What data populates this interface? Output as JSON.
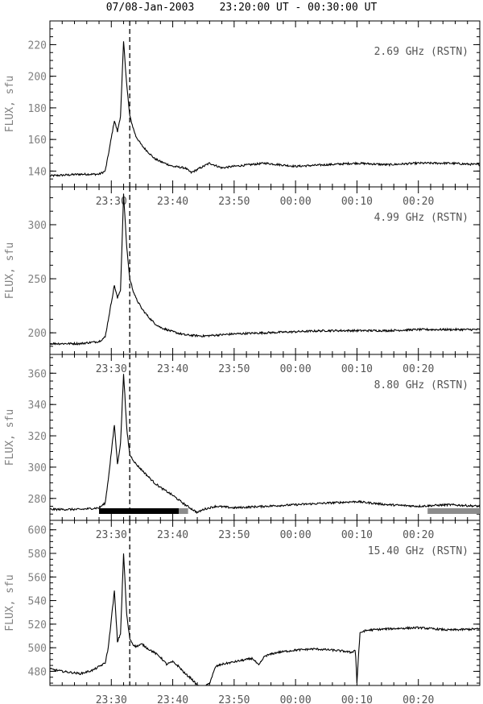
{
  "figure": {
    "title": "07/08-Jan-2003    23:20:00 UT - 00:30:00 UT"
  },
  "colors": {
    "line": "#000000",
    "axis": "#000000",
    "label_gray": "#808080",
    "bar_black": "#000000",
    "bar_gray": "#8c8c8c"
  },
  "chart_data": [
    {
      "type": "line",
      "label": "2.69 GHz (RSTN)",
      "ylabel": "FLUX,  sfu",
      "xlabel": "",
      "xlim": [
        "23:20",
        "00:30"
      ],
      "ylim": [
        130,
        235
      ],
      "yticks": [
        140,
        160,
        180,
        200,
        220
      ],
      "xticks": [
        "23:30",
        "23:40",
        "23:50",
        "00:00",
        "00:10",
        "00:20"
      ],
      "marker_time": "23:33",
      "series": [
        {
          "x": [
            "23:20",
            "23:25",
            "23:28",
            "23:29",
            "23:29:30",
            "23:30:30",
            "23:31",
            "23:31:30",
            "23:32",
            "23:32:30",
            "23:33",
            "23:33:30",
            "23:34",
            "23:35",
            "23:36",
            "23:37",
            "23:38",
            "23:40",
            "23:42",
            "23:43",
            "23:45",
            "23:46",
            "23:48",
            "23:50",
            "23:55",
            "00:00",
            "00:05",
            "00:10",
            "00:15",
            "00:20",
            "00:25",
            "00:30"
          ],
          "values": [
            137,
            138,
            138,
            140,
            150,
            172,
            165,
            175,
            222,
            195,
            175,
            168,
            162,
            156,
            152,
            148,
            146,
            143,
            142,
            139,
            143,
            145,
            142,
            143,
            145,
            143,
            144,
            145,
            144,
            145,
            145,
            144
          ]
        }
      ]
    },
    {
      "type": "line",
      "label": "4.99 GHz (RSTN)",
      "ylabel": "FLUX,  sfu",
      "xlabel": "",
      "xlim": [
        "23:20",
        "00:30"
      ],
      "ylim": [
        180,
        335
      ],
      "yticks": [
        200,
        250,
        300
      ],
      "xticks": [
        "23:30",
        "23:40",
        "23:50",
        "00:00",
        "00:10",
        "00:20"
      ],
      "marker_time": "23:33",
      "series": [
        {
          "x": [
            "23:20",
            "23:25",
            "23:28",
            "23:29",
            "23:29:30",
            "23:30:30",
            "23:31",
            "23:31:30",
            "23:32",
            "23:32:30",
            "23:33",
            "23:33:30",
            "23:34",
            "23:35",
            "23:36",
            "23:37",
            "23:38",
            "23:40",
            "23:42",
            "23:45",
            "23:50",
            "23:55",
            "00:00",
            "00:05",
            "00:10",
            "00:15",
            "00:20",
            "00:25",
            "00:30"
          ],
          "values": [
            190,
            190,
            192,
            196,
            212,
            244,
            232,
            240,
            328,
            280,
            250,
            240,
            232,
            222,
            215,
            209,
            205,
            201,
            198,
            197,
            199,
            200,
            201,
            202,
            202,
            202,
            203,
            203,
            203
          ]
        }
      ]
    },
    {
      "type": "line",
      "label": "8.80 GHz (RSTN)",
      "ylabel": "FLUX,  sfu",
      "xlabel": "",
      "xlim": [
        "23:20",
        "00:30"
      ],
      "ylim": [
        266,
        372
      ],
      "yticks": [
        280,
        300,
        320,
        340,
        360
      ],
      "xticks": [
        "23:30",
        "23:40",
        "23:50",
        "00:00",
        "00:10",
        "00:20"
      ],
      "marker_time": "23:33",
      "series": [
        {
          "x": [
            "23:20",
            "23:25",
            "23:28",
            "23:29",
            "23:29:30",
            "23:30:30",
            "23:31",
            "23:31:30",
            "23:32",
            "23:32:30",
            "23:33",
            "23:33:30",
            "23:34",
            "23:35",
            "23:36",
            "23:37",
            "23:38",
            "23:40",
            "23:42",
            "23:44",
            "23:45",
            "23:47",
            "23:50",
            "23:55",
            "00:00",
            "00:05",
            "00:10",
            "00:15",
            "00:20",
            "00:25",
            "00:30"
          ],
          "values": [
            273,
            273,
            274,
            277,
            292,
            327,
            302,
            315,
            360,
            325,
            308,
            305,
            302,
            298,
            294,
            290,
            287,
            282,
            276,
            271,
            273,
            275,
            274,
            275,
            276,
            277,
            278,
            276,
            275,
            276,
            275
          ]
        }
      ],
      "bars": [
        {
          "start": "23:28",
          "end": "23:41",
          "color": "black"
        },
        {
          "start": "23:41",
          "end": "23:42:30",
          "color": "gray"
        },
        {
          "start": "00:21:30",
          "end": "00:30",
          "color": "gray"
        }
      ]
    },
    {
      "type": "line",
      "label": "15.40 GHz (RSTN)",
      "ylabel": "FLUX,  sfu",
      "xlabel": "",
      "xlim": [
        "23:20",
        "00:30"
      ],
      "ylim": [
        468,
        608
      ],
      "yticks": [
        480,
        500,
        520,
        540,
        560,
        580,
        600
      ],
      "xticks": [
        "23:30",
        "23:40",
        "23:50",
        "00:00",
        "00:10",
        "00:20"
      ],
      "marker_time": "23:33",
      "series": [
        {
          "x": [
            "23:20",
            "23:22",
            "23:25",
            "23:27",
            "23:28",
            "23:29",
            "23:29:30",
            "23:30:30",
            "23:31",
            "23:31:30",
            "23:32",
            "23:32:30",
            "23:33",
            "23:33:30",
            "23:34",
            "23:35",
            "23:36",
            "23:37",
            "23:38",
            "23:39",
            "23:40",
            "23:41",
            "23:42",
            "23:43",
            "23:44",
            "23:45",
            "23:46",
            "23:47",
            "23:48",
            "23:50",
            "23:52",
            "23:53",
            "23:54",
            "23:55",
            "23:57",
            "00:00",
            "00:03",
            "00:06",
            "00:08",
            "00:09",
            "00:09:45",
            "00:10",
            "00:10:15",
            "00:10:30",
            "00:11",
            "00:12",
            "00:15",
            "00:20",
            "00:25",
            "00:30"
          ],
          "values": [
            482,
            480,
            478,
            481,
            484,
            487,
            500,
            548,
            505,
            512,
            580,
            528,
            508,
            503,
            501,
            503,
            499,
            496,
            492,
            486,
            488,
            484,
            478,
            474,
            468,
            466,
            470,
            484,
            486,
            488,
            490,
            491,
            485,
            493,
            496,
            498,
            499,
            498,
            497,
            496,
            498,
            470,
            494,
            512,
            514,
            515,
            516,
            517,
            515,
            516
          ]
        }
      ]
    }
  ]
}
